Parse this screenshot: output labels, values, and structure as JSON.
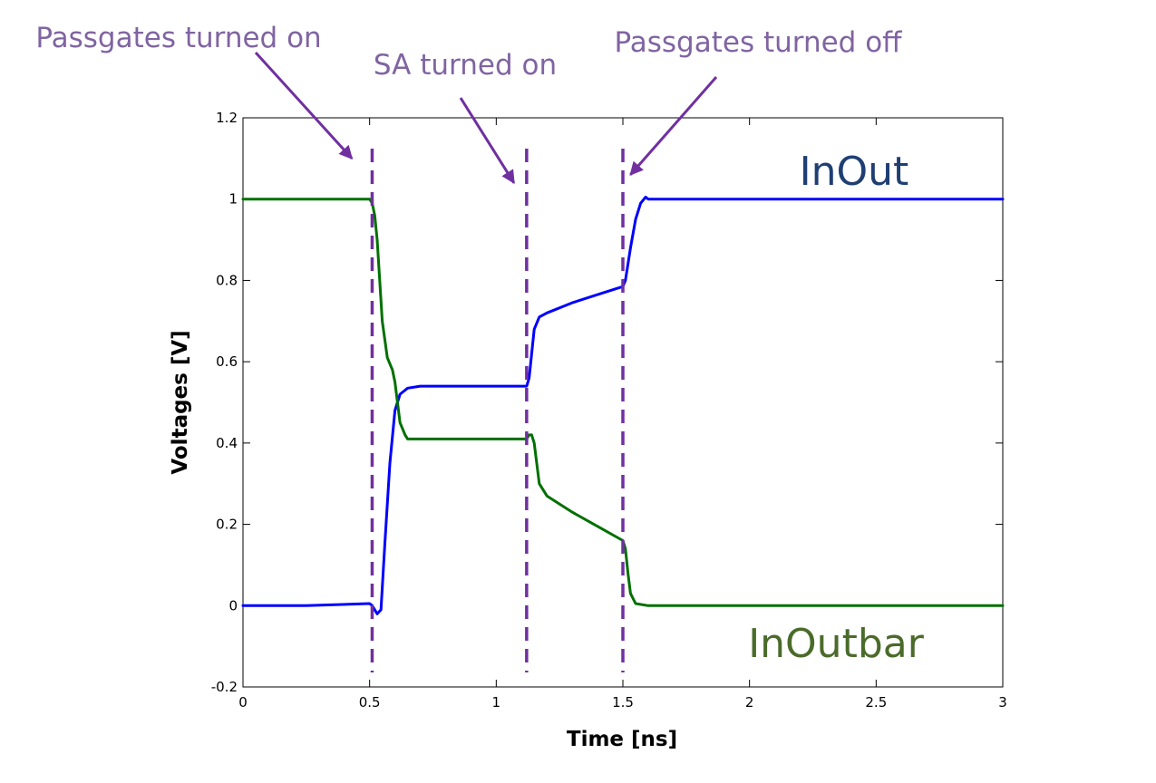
{
  "chart_data": {
    "type": "line",
    "title": "",
    "xlabel": "Time [ns]",
    "ylabel": "Voltages [V]",
    "xlim": [
      0,
      3
    ],
    "ylim": [
      -0.2,
      1.2
    ],
    "xticks": [
      0,
      0.5,
      1,
      1.5,
      2,
      2.5,
      3
    ],
    "xtick_labels": [
      "0",
      "0.5",
      "1",
      "1.5",
      "2",
      "2.5",
      "3"
    ],
    "yticks": [
      -0.2,
      0,
      0.2,
      0.4,
      0.6,
      0.8,
      1,
      1.2
    ],
    "ytick_labels": [
      "-0.2",
      "0",
      "0.2",
      "0.4",
      "0.6",
      "0.8",
      "1",
      "1.2"
    ],
    "grid": false,
    "series": [
      {
        "name": "InOut",
        "color": "#0000ff",
        "label_color": "#1f3f73",
        "x": [
          0,
          0.25,
          0.5,
          0.51,
          0.53,
          0.545,
          0.56,
          0.58,
          0.6,
          0.62,
          0.65,
          0.7,
          0.8,
          1.0,
          1.12,
          1.13,
          1.15,
          1.17,
          1.2,
          1.3,
          1.4,
          1.5,
          1.51,
          1.53,
          1.55,
          1.57,
          1.59,
          1.6,
          1.7,
          2.0,
          2.5,
          3.0
        ],
        "y": [
          0,
          0,
          0.005,
          0,
          -0.02,
          -0.01,
          0.15,
          0.35,
          0.48,
          0.52,
          0.535,
          0.54,
          0.54,
          0.54,
          0.54,
          0.56,
          0.68,
          0.71,
          0.72,
          0.745,
          0.765,
          0.785,
          0.8,
          0.88,
          0.95,
          0.99,
          1.005,
          1.0,
          1.0,
          1.0,
          1.0,
          1.0
        ]
      },
      {
        "name": "InOutbar",
        "color": "#007000",
        "label_color": "#4a6b2a",
        "x": [
          0,
          0.25,
          0.5,
          0.51,
          0.52,
          0.53,
          0.54,
          0.55,
          0.57,
          0.59,
          0.6,
          0.62,
          0.64,
          0.65,
          0.7,
          0.8,
          1.0,
          1.12,
          1.13,
          1.14,
          1.15,
          1.17,
          1.2,
          1.3,
          1.4,
          1.5,
          1.51,
          1.52,
          1.53,
          1.55,
          1.6,
          2.0,
          2.5,
          3.0
        ],
        "y": [
          1.0,
          1.0,
          1.0,
          0.99,
          0.96,
          0.9,
          0.8,
          0.7,
          0.61,
          0.58,
          0.55,
          0.45,
          0.42,
          0.41,
          0.41,
          0.41,
          0.41,
          0.41,
          0.42,
          0.42,
          0.4,
          0.3,
          0.27,
          0.23,
          0.195,
          0.16,
          0.14,
          0.08,
          0.03,
          0.005,
          0,
          0,
          0,
          0
        ]
      }
    ],
    "vlines": [
      {
        "x": 0.51,
        "color": "#7030a0"
      },
      {
        "x": 1.12,
        "color": "#7030a0"
      },
      {
        "x": 1.5,
        "color": "#7030a0"
      }
    ],
    "annotations": [
      {
        "text": "Passgates turned on",
        "color": "#8064a2",
        "arrow_color": "#7030a0",
        "target_x": 0.43,
        "target_y": 1.1
      },
      {
        "text": "SA turned on",
        "color": "#8064a2",
        "arrow_color": "#7030a0",
        "target_x": 1.07,
        "target_y": 1.04
      },
      {
        "text": "Passgates turned off",
        "color": "#8064a2",
        "arrow_color": "#7030a0",
        "target_x": 1.53,
        "target_y": 1.06
      }
    ]
  }
}
